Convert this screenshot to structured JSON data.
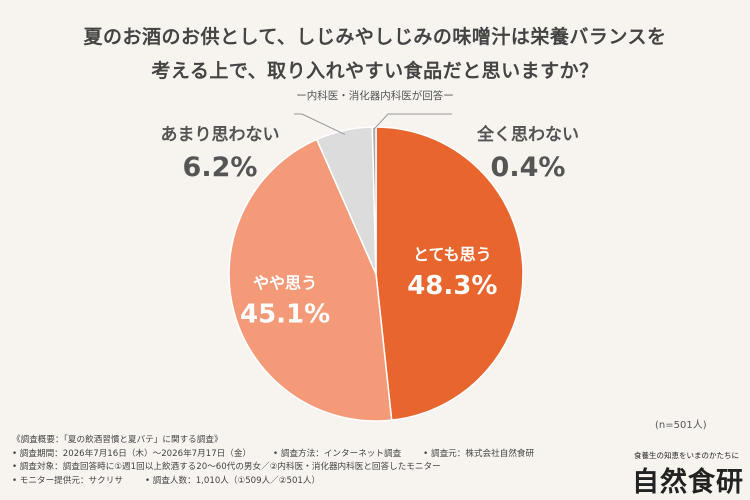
{
  "title_line1": "夏のお酒のお供として、しじみやしじみの味噌汁は栄養バランスを",
  "title_line2": "考える上で、取り入れやすい食品だと思いますか？",
  "subtitle": "ー内科医・消化器内科医が回答ー",
  "n_note": "(n=501人)",
  "chart_data": {
    "type": "pie",
    "title": "夏のお酒のお供として、しじみやしじみの味噌汁は栄養バランスを考える上で、取り入れやすい食品だと思いますか？",
    "slices": [
      {
        "label": "とても思う",
        "value": 48.3,
        "value_label": "48.3%",
        "color": "#e8662e"
      },
      {
        "label": "やや思う",
        "value": 45.1,
        "value_label": "45.1%",
        "color": "#f59a78"
      },
      {
        "label": "あまり思わない",
        "value": 6.2,
        "value_label": "6.2%",
        "color": "#dcdcdc"
      },
      {
        "label": "全く思わない",
        "value": 0.4,
        "value_label": "0.4%",
        "color": "#a9a9a9"
      }
    ],
    "start": "12 o'clock",
    "direction": "clockwise"
  },
  "notes": {
    "overview": "《調査概要：「夏の飲酒習慣と夏バテ」に関する調査》",
    "period": "• 調査期間：2026年7月16日（木）～2026年7月17日（金）",
    "method": "• 調査方法：インターネット調査",
    "org": "• 調査元：株式会社自然食研",
    "target": "• 調査対象：調査回答時に①週1回以上飲酒する20～60代の男女／②内科医・消化器内科医と回答したモニター",
    "monitor": "• モニター提供元：サクリサ",
    "count": "• 調査人数：1,010人（①509人／②501人）"
  },
  "logo": {
    "tagline": "食養生の知恵をいまのかたちに",
    "name": "自然食研"
  }
}
